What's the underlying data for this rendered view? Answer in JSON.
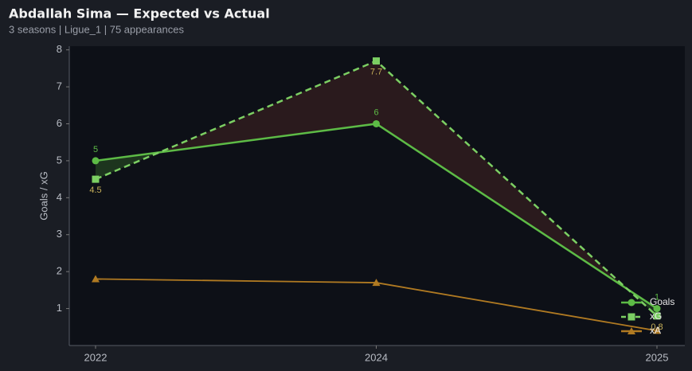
{
  "chart_data": {
    "type": "line",
    "title": "Abdallah Sima — Expected vs Actual",
    "subtitle": "3 seasons | Ligue_1 | 75 appearances",
    "y_label": "Goals / xG",
    "categories": [
      "2022",
      "2024",
      "2025"
    ],
    "series": [
      {
        "name": "Goals",
        "color": "#5dbb46",
        "marker": "circle",
        "dash": false,
        "values": [
          5,
          6,
          1
        ],
        "value_labels": [
          "5",
          "6",
          "1"
        ]
      },
      {
        "name": "xG",
        "color": "#7ccf63",
        "marker": "square",
        "dash": true,
        "values": [
          4.5,
          7.7,
          0.8
        ],
        "value_labels": [
          "4.5",
          "7.7",
          "0.8"
        ]
      },
      {
        "name": "xA",
        "color": "#b07a22",
        "marker": "triangle",
        "dash": false,
        "values": [
          1.8,
          1.7,
          0.4
        ]
      }
    ],
    "ylim": [
      0,
      8.1
    ],
    "yticks": [
      1,
      2,
      3,
      4,
      5,
      6,
      7,
      8
    ],
    "legend": "lower right"
  }
}
